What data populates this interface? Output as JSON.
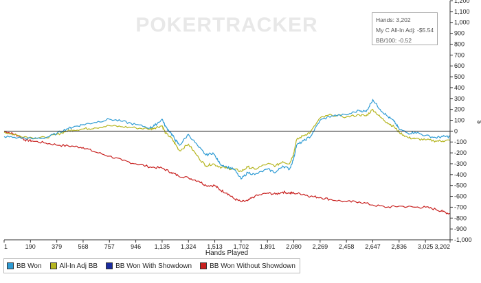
{
  "watermark": "POKERTRACKER",
  "tooltip": {
    "hands": "Hands: 3,202",
    "adj": "My C All-In Adj: -$5.54",
    "bb100": "BB/100: -0.52"
  },
  "chart_data": {
    "type": "line",
    "title": "",
    "xlabel": "Hands Played",
    "ylabel": "$",
    "xlim": [
      1,
      3202
    ],
    "ylim": [
      -1000,
      1200
    ],
    "x_ticks": [
      1,
      190,
      379,
      568,
      757,
      946,
      1135,
      1324,
      1513,
      1702,
      1891,
      2080,
      2269,
      2458,
      2647,
      2836,
      3025,
      3202
    ],
    "x_tick_labels": [
      "1",
      "190",
      "379",
      "568",
      "757",
      "946",
      "1,135",
      "1,324",
      "1,513",
      "1,702",
      "1,891",
      "2,080",
      "2,269",
      "2,458",
      "2,647",
      "2,836",
      "3,025",
      "3,202"
    ],
    "y_ticks": [
      1200,
      1100,
      1000,
      900,
      800,
      700,
      600,
      500,
      400,
      300,
      200,
      100,
      0,
      -100,
      -200,
      -300,
      -400,
      -500,
      -600,
      -700,
      -800,
      -900,
      -1000
    ],
    "y_tick_labels": [
      "1,200",
      "1,100",
      "1,000",
      "900",
      "800",
      "700",
      "600",
      "500",
      "400",
      "300",
      "200",
      "100",
      "0",
      "-100",
      "-200",
      "-300",
      "-400",
      "-500",
      "-600",
      "-700",
      "-800",
      "-900",
      "-1,000"
    ],
    "legend_position": "bottom",
    "series": [
      {
        "name": "BB Won",
        "color": "#2e9bd4",
        "x": [
          1,
          100,
          200,
          300,
          380,
          450,
          500,
          568,
          650,
          757,
          850,
          946,
          1050,
          1080,
          1135,
          1160,
          1200,
          1230,
          1260,
          1324,
          1400,
          1450,
          1500,
          1550,
          1600,
          1650,
          1702,
          1750,
          1800,
          1891,
          1950,
          2000,
          2050,
          2080,
          2100,
          2150,
          2200,
          2269,
          2350,
          2458,
          2550,
          2600,
          2647,
          2700,
          2750,
          2800,
          2836,
          2900,
          2950,
          3025,
          3100,
          3150,
          3202
        ],
        "y": [
          -50,
          -60,
          -70,
          -60,
          -20,
          20,
          40,
          60,
          80,
          110,
          90,
          60,
          30,
          50,
          110,
          40,
          -20,
          -80,
          -130,
          -30,
          -150,
          -220,
          -200,
          -300,
          -330,
          -350,
          -440,
          -380,
          -400,
          -350,
          -380,
          -320,
          -350,
          -250,
          -130,
          -90,
          -50,
          100,
          140,
          150,
          190,
          180,
          290,
          200,
          140,
          90,
          20,
          -20,
          -10,
          -40,
          -60,
          -50,
          -50
        ]
      },
      {
        "name": "All-In Adj BB",
        "color": "#b5b520",
        "x": [
          1,
          100,
          200,
          300,
          380,
          450,
          500,
          568,
          650,
          757,
          850,
          946,
          1050,
          1080,
          1135,
          1160,
          1200,
          1230,
          1260,
          1324,
          1400,
          1450,
          1500,
          1550,
          1600,
          1650,
          1702,
          1750,
          1800,
          1891,
          1950,
          2000,
          2050,
          2080,
          2100,
          2150,
          2200,
          2269,
          2350,
          2458,
          2550,
          2600,
          2647,
          2700,
          2750,
          2800,
          2836,
          2900,
          2950,
          3025,
          3100,
          3150,
          3202
        ],
        "y": [
          -10,
          -40,
          -60,
          -60,
          -30,
          0,
          10,
          20,
          30,
          50,
          40,
          30,
          20,
          30,
          50,
          -20,
          -60,
          -120,
          -180,
          -120,
          -250,
          -320,
          -300,
          -330,
          -340,
          -350,
          -370,
          -330,
          -350,
          -300,
          -320,
          -280,
          -300,
          -200,
          -80,
          -40,
          -10,
          120,
          150,
          130,
          150,
          140,
          200,
          130,
          80,
          40,
          -10,
          -60,
          -70,
          -80,
          -90,
          -90,
          -85
        ]
      },
      {
        "name": "BB Won With Showdown",
        "color": "#1a2b9e",
        "x": [],
        "y": []
      },
      {
        "name": "BB Won Without Showdown",
        "color": "#c8201f",
        "x": [
          1,
          50,
          100,
          150,
          200,
          300,
          400,
          500,
          568,
          650,
          757,
          850,
          946,
          1050,
          1135,
          1200,
          1250,
          1324,
          1400,
          1450,
          1513,
          1550,
          1600,
          1650,
          1702,
          1750,
          1800,
          1891,
          1950,
          2000,
          2050,
          2080,
          2150,
          2200,
          2269,
          2350,
          2458,
          2550,
          2647,
          2750,
          2836,
          2950,
          3025,
          3100,
          3150,
          3202
        ],
        "y": [
          0,
          -20,
          -40,
          -80,
          -90,
          -110,
          -130,
          -140,
          -150,
          -190,
          -230,
          -270,
          -300,
          -330,
          -340,
          -380,
          -410,
          -430,
          -460,
          -500,
          -500,
          -540,
          -570,
          -620,
          -650,
          -640,
          -600,
          -570,
          -580,
          -560,
          -570,
          -570,
          -580,
          -600,
          -610,
          -630,
          -650,
          -650,
          -680,
          -700,
          -690,
          -700,
          -700,
          -720,
          -740,
          -760
        ]
      }
    ]
  }
}
